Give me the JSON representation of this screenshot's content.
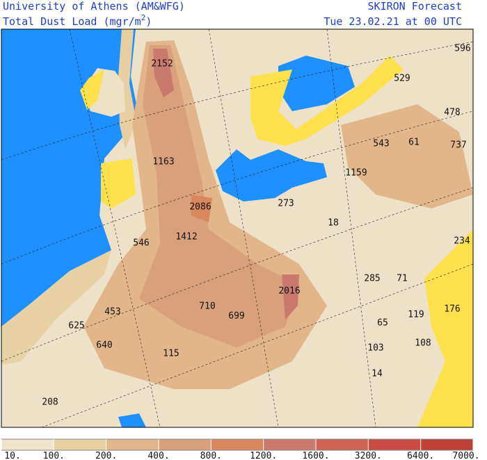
{
  "header": {
    "institution": "University of Athens (AM&WFG)",
    "field": "Total Dust Load (mgr/m",
    "field_superscript": "2",
    "field_close": ")",
    "product": "SKIRON Forecast",
    "valid_time": "Tue 23.02.21 at 00 UTC"
  },
  "map": {
    "labels": [
      "2152",
      "1163",
      "2086",
      "1412",
      "546",
      "273",
      "18",
      "1159",
      "543",
      "61",
      "737",
      "529",
      "478",
      "596",
      "234",
      "285",
      "71",
      "2016",
      "710",
      "699",
      "453",
      "625",
      "119",
      "176",
      "65",
      "640",
      "115",
      "103",
      "108",
      "14",
      "208"
    ]
  },
  "colorbar": {
    "levels": [
      {
        "value": 10,
        "label": "10."
      },
      {
        "value": 100,
        "label": "100."
      },
      {
        "value": 200,
        "label": "200."
      },
      {
        "value": 400,
        "label": "400."
      },
      {
        "value": 800,
        "label": "800."
      },
      {
        "value": 1200,
        "label": "1200."
      },
      {
        "value": 1600,
        "label": "1600."
      },
      {
        "value": 3200,
        "label": "3200."
      },
      {
        "value": 6400,
        "label": "6400."
      },
      {
        "value": 7000,
        "label": "7000."
      }
    ],
    "colors": [
      "#efe3cc",
      "#e8cfa2",
      "#e2b58a",
      "#d9a07c",
      "#d8875f",
      "#c97a6c",
      "#cb6453",
      "#c94c45",
      "#be4038"
    ]
  }
}
